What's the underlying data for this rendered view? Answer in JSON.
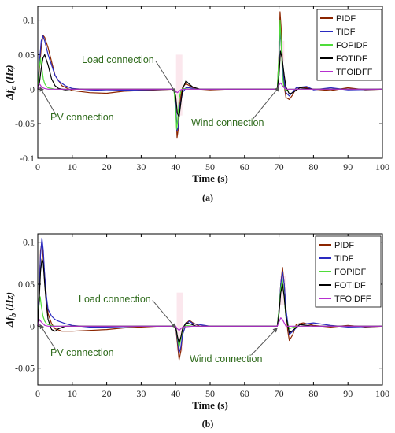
{
  "chart_data": [
    {
      "type": "line",
      "panel_label": "(a)",
      "xlabel": "Time (s)",
      "ylabel_base": "Δf",
      "ylabel_sub": "a",
      "ylabel_unit": "(Hz)",
      "xlim": [
        0,
        100
      ],
      "ylim": [
        -0.1,
        0.12
      ],
      "xticks": [
        0,
        10,
        20,
        30,
        40,
        50,
        60,
        70,
        80,
        90,
        100
      ],
      "yticks": [
        -0.1,
        -0.05,
        0,
        0.05,
        0.1
      ],
      "ytick_labels": [
        "-0.1",
        "-0.05",
        "0",
        "0.05",
        "0.1"
      ],
      "legend_position": "top-right",
      "series": [
        {
          "name": "PIDF",
          "color": "#8b2500",
          "x": [
            0,
            0.5,
            1,
            1.5,
            2,
            3,
            4,
            5,
            7,
            10,
            15,
            20,
            25,
            30,
            35,
            39.5,
            40,
            40.4,
            40.7,
            41,
            41.5,
            42,
            43,
            44,
            45,
            47,
            50,
            55,
            60,
            65,
            69.5,
            70,
            70.3,
            70.6,
            71,
            71.5,
            72,
            73,
            74,
            75,
            77,
            80,
            85,
            90,
            95,
            100
          ],
          "y": [
            0,
            0.03,
            0.06,
            0.078,
            0.075,
            0.06,
            0.04,
            0.02,
            0.005,
            -0.002,
            -0.005,
            -0.006,
            -0.003,
            -0.002,
            -0.001,
            0,
            -0.02,
            -0.07,
            -0.06,
            -0.03,
            -0.01,
            0.003,
            0.008,
            0.005,
            0.002,
            0,
            -0.001,
            0,
            0,
            0,
            0,
            0.05,
            0.112,
            0.09,
            0.04,
            0.005,
            -0.012,
            -0.015,
            -0.008,
            0.002,
            0.003,
            0,
            -0.002,
            0.002,
            -0.001,
            0
          ]
        },
        {
          "name": "TIDF",
          "color": "#2a2ac0",
          "x": [
            0,
            0.5,
            1,
            1.5,
            2,
            3,
            4,
            5,
            6,
            8,
            10,
            15,
            20,
            30,
            39.5,
            40,
            40.4,
            40.8,
            41.2,
            42,
            43,
            44,
            46,
            50,
            60,
            69.5,
            70,
            70.3,
            70.7,
            71.2,
            72,
            73,
            75,
            78,
            80,
            85,
            90,
            100
          ],
          "y": [
            0,
            0.04,
            0.07,
            0.077,
            0.07,
            0.05,
            0.035,
            0.02,
            0.012,
            0.005,
            0.001,
            -0.001,
            -0.002,
            -0.001,
            0,
            -0.02,
            -0.06,
            -0.055,
            -0.025,
            -0.005,
            0.002,
            0.002,
            0,
            0,
            0,
            0,
            0.04,
            0.085,
            0.06,
            0.02,
            -0.005,
            -0.01,
            0.002,
            0.004,
            -0.001,
            0.002,
            -0.001,
            0
          ]
        },
        {
          "name": "FOPIDF",
          "color": "#4fdc3a",
          "x": [
            0,
            0.4,
            0.8,
            1.2,
            1.6,
            2,
            2.5,
            3,
            4,
            5,
            7,
            10,
            20,
            30,
            39.5,
            40,
            40.3,
            40.6,
            41,
            41.5,
            42,
            44,
            50,
            60,
            69.5,
            70,
            70.3,
            70.6,
            71,
            71.4,
            72,
            73,
            75,
            80,
            90,
            100
          ],
          "y": [
            0,
            0.03,
            0.045,
            0.03,
            0.015,
            0.008,
            0.004,
            0.002,
            0.001,
            0,
            0,
            0,
            0,
            0,
            0,
            -0.03,
            -0.058,
            -0.045,
            -0.015,
            -0.002,
            0.001,
            0,
            0,
            0,
            0,
            0.05,
            0.1,
            0.07,
            0.02,
            0.003,
            -0.002,
            0,
            0,
            0,
            0,
            0
          ]
        },
        {
          "name": "FOTIDF",
          "color": "#000000",
          "x": [
            0,
            0.5,
            1,
            1.5,
            2,
            3,
            4,
            5,
            6,
            8,
            10,
            15,
            20,
            30,
            39.5,
            40,
            40.5,
            41,
            41.5,
            42,
            43,
            44,
            45,
            47,
            50,
            60,
            69.5,
            70,
            70.4,
            70.9,
            71.5,
            72,
            73,
            74,
            76,
            80,
            90,
            100
          ],
          "y": [
            0,
            0.01,
            0.03,
            0.045,
            0.05,
            0.035,
            0.015,
            0.005,
            0.001,
            -0.001,
            0,
            0,
            0,
            0,
            0,
            -0.01,
            -0.035,
            -0.04,
            -0.02,
            0,
            0.012,
            0.007,
            0.003,
            0,
            0,
            0,
            0,
            0.02,
            0.055,
            0.045,
            0.02,
            0.003,
            -0.007,
            -0.005,
            0.002,
            0,
            0,
            0
          ]
        },
        {
          "name": "TFOIDFF",
          "color": "#b62fcf",
          "x": [
            0,
            0.5,
            1,
            1.5,
            2,
            3,
            5,
            10,
            20,
            30,
            39.5,
            40,
            40.5,
            41,
            41.5,
            42,
            45,
            50,
            60,
            69.5,
            70,
            70.5,
            71,
            71.5,
            72,
            75,
            80,
            90,
            100
          ],
          "y": [
            0,
            0.008,
            0.004,
            0.002,
            0.001,
            0,
            0,
            0,
            0,
            0,
            0,
            -0.003,
            -0.005,
            -0.003,
            -0.001,
            0,
            0,
            0,
            0,
            0,
            0.006,
            0.009,
            0.005,
            0.002,
            0,
            0,
            0,
            0,
            0
          ]
        }
      ],
      "annotations": [
        {
          "text": "Load connection",
          "point_to": [
            40,
            -0.005
          ],
          "text_at": [
            30,
            0.037
          ]
        },
        {
          "text": "PV connection",
          "point_to": [
            0.6,
            0.003
          ],
          "text_at": [
            4,
            -0.035
          ]
        },
        {
          "text": "Wind connection",
          "point_to": [
            70,
            0.003
          ],
          "text_at": [
            54,
            -0.045
          ]
        }
      ]
    },
    {
      "type": "line",
      "panel_label": "(b)",
      "xlabel": "Time (s)",
      "ylabel_base": "Δf",
      "ylabel_sub": "b",
      "ylabel_unit": "(Hz)",
      "xlim": [
        0,
        100
      ],
      "ylim": [
        -0.07,
        0.11
      ],
      "xticks": [
        0,
        10,
        20,
        30,
        40,
        50,
        60,
        70,
        80,
        90,
        100
      ],
      "yticks": [
        -0.05,
        0,
        0.05,
        0.1
      ],
      "ytick_labels": [
        "-0.05",
        "0",
        "0.05",
        "0.1"
      ],
      "legend_position": "top-right",
      "series": [
        {
          "name": "PIDF",
          "color": "#8b2500",
          "x": [
            0,
            0.4,
            0.8,
            1.2,
            1.8,
            2.5,
            3,
            4,
            5,
            7,
            10,
            15,
            20,
            25,
            30,
            35,
            40,
            40.5,
            41,
            41.5,
            42,
            43,
            44,
            45,
            47,
            50,
            60,
            69.5,
            70,
            70.5,
            71,
            71.5,
            72,
            72.5,
            73,
            74,
            75,
            77,
            80,
            85,
            90,
            95,
            100
          ],
          "y": [
            0,
            0.04,
            0.09,
            0.1,
            0.07,
            0.035,
            0.015,
            0.003,
            -0.003,
            -0.006,
            -0.006,
            -0.005,
            -0.004,
            -0.002,
            -0.001,
            0,
            0,
            -0.02,
            -0.04,
            -0.03,
            -0.01,
            0.003,
            0.007,
            0.004,
            0,
            0,
            0,
            0,
            0.02,
            0.05,
            0.07,
            0.05,
            0.02,
            -0.005,
            -0.017,
            -0.01,
            0.002,
            0.004,
            0.001,
            -0.001,
            0.001,
            -0.001,
            0
          ]
        },
        {
          "name": "TIDF",
          "color": "#2a2ac0",
          "x": [
            0,
            0.4,
            0.8,
            1.2,
            1.6,
            2,
            2.5,
            3,
            4,
            5,
            6,
            8,
            10,
            15,
            20,
            30,
            40,
            40.5,
            41,
            41.5,
            42,
            43,
            44,
            45,
            50,
            60,
            69.5,
            70,
            70.5,
            71,
            71.5,
            72,
            73,
            74,
            76,
            80,
            85,
            90,
            100
          ],
          "y": [
            0,
            0.04,
            0.085,
            0.105,
            0.09,
            0.06,
            0.035,
            0.02,
            0.012,
            0.008,
            0.006,
            0.003,
            0.001,
            -0.001,
            -0.001,
            0,
            0,
            -0.015,
            -0.032,
            -0.025,
            -0.01,
            0.002,
            0.006,
            0.003,
            0,
            0,
            0,
            0.02,
            0.05,
            0.065,
            0.05,
            0.02,
            -0.01,
            -0.006,
            0.002,
            0.004,
            0.001,
            -0.001,
            0
          ]
        },
        {
          "name": "FOPIDF",
          "color": "#4fdc3a",
          "x": [
            0,
            0.3,
            0.7,
            1,
            1.5,
            2,
            2.5,
            3,
            4,
            5,
            10,
            20,
            30,
            40,
            40.5,
            41,
            41.5,
            42,
            43,
            45,
            50,
            60,
            69.5,
            70,
            70.5,
            71,
            71.5,
            72,
            73,
            75,
            80,
            90,
            100
          ],
          "y": [
            0,
            0.025,
            0.035,
            0.025,
            0.012,
            0.006,
            0.003,
            0.002,
            0.001,
            0,
            0,
            0,
            0,
            0,
            -0.012,
            -0.025,
            -0.015,
            -0.004,
            0.001,
            0,
            0,
            0,
            0,
            0.02,
            0.045,
            0.055,
            0.035,
            0.01,
            -0.003,
            0,
            0,
            0,
            0
          ]
        },
        {
          "name": "FOTIDF",
          "color": "#000000",
          "x": [
            0,
            0.4,
            0.8,
            1.2,
            1.6,
            2,
            2.5,
            3,
            4,
            5,
            6,
            8,
            10,
            20,
            30,
            40,
            40.5,
            41,
            41.5,
            42,
            43,
            44,
            46,
            50,
            60,
            69.5,
            70,
            70.5,
            71,
            71.5,
            72,
            73,
            74,
            76,
            80,
            90,
            100
          ],
          "y": [
            0,
            0.03,
            0.065,
            0.08,
            0.075,
            0.05,
            0.025,
            0.008,
            -0.004,
            -0.006,
            -0.003,
            0,
            0,
            0,
            0,
            0,
            -0.012,
            -0.02,
            -0.013,
            -0.003,
            0.004,
            0.003,
            0,
            0,
            0,
            0,
            0.015,
            0.04,
            0.05,
            0.035,
            0.012,
            -0.008,
            -0.005,
            0.002,
            0,
            0,
            0
          ]
        },
        {
          "name": "TFOIDFF",
          "color": "#b62fcf",
          "x": [
            0,
            0.5,
            1,
            1.5,
            2,
            3,
            5,
            10,
            20,
            30,
            40,
            40.5,
            41,
            41.5,
            42,
            45,
            50,
            60,
            69.5,
            70,
            70.5,
            71,
            71.5,
            72,
            75,
            80,
            90,
            100
          ],
          "y": [
            0,
            0.008,
            0.005,
            0.003,
            0.001,
            0,
            0,
            0,
            0,
            0,
            0,
            -0.003,
            -0.005,
            -0.003,
            -0.001,
            0,
            0,
            0,
            0,
            0.005,
            0.01,
            0.008,
            0.004,
            0,
            0,
            0,
            0,
            0
          ]
        }
      ],
      "annotations": [
        {
          "text": "Load connection",
          "point_to": [
            40,
            -0.002
          ],
          "text_at": [
            28,
            0.02
          ]
        },
        {
          "text": "PV connection",
          "point_to": [
            0.6,
            0.002
          ],
          "text_at": [
            4,
            -0.03
          ]
        },
        {
          "text": "Wind connection",
          "point_to": [
            69.5,
            -0.002
          ],
          "text_at": [
            54,
            -0.04
          ]
        }
      ]
    }
  ]
}
